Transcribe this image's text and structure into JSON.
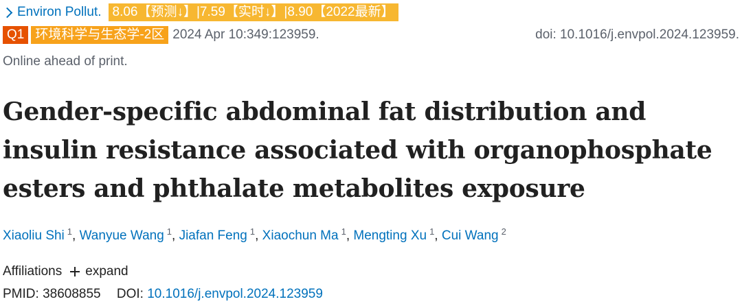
{
  "journal": {
    "name": "Environ Pollut.",
    "icon": "chevron-right-icon",
    "impact_badge": "8.06【预测↓】|7.59【实时↓】|8.90【2022最新】",
    "quartile_badge": "Q1",
    "category_badge": "环境科学与生态学-2区",
    "citation": "2024 Apr 10:349:123959.",
    "doi_text": "doi: 10.1016/j.envpol.2024.123959.",
    "status": "Online ahead of print.",
    "colors": {
      "link": "#0071bc",
      "impact_badge_bg": "#f7b731",
      "quartile_badge_bg": "#e65100",
      "category_badge_bg": "#f7a21b"
    }
  },
  "article": {
    "title_lines": [
      "Gender-specific abdominal fat distribution and",
      "insulin resistance associated with organophosphate",
      "esters and phthalate metabolites exposure"
    ]
  },
  "authors": [
    {
      "name": "Xiaoliu Shi",
      "aff": "1"
    },
    {
      "name": "Wanyue Wang",
      "aff": "1"
    },
    {
      "name": "Jiafan Feng",
      "aff": "1"
    },
    {
      "name": "Xiaochun Ma",
      "aff": "1"
    },
    {
      "name": "Mengting Xu",
      "aff": "1"
    },
    {
      "name": "Cui Wang",
      "aff": "2"
    }
  ],
  "affiliations": {
    "label": "Affiliations",
    "icon": "plus-icon",
    "expand_label": "expand"
  },
  "identifiers": {
    "pmid_label": "PMID:",
    "pmid": "38608855",
    "doi_label": "DOI:",
    "doi": "10.1016/j.envpol.2024.123959"
  }
}
